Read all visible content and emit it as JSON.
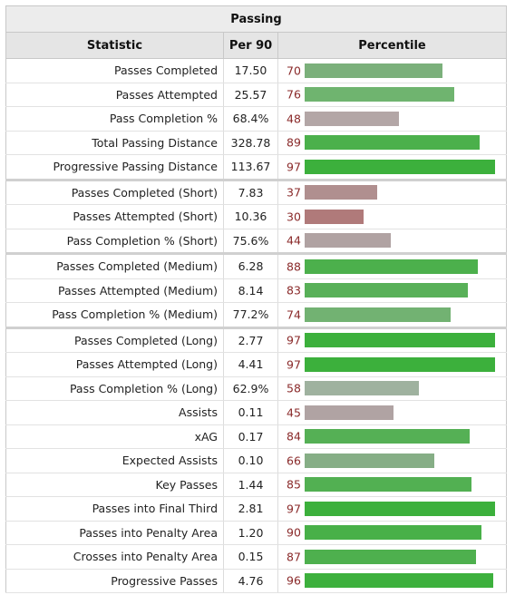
{
  "table": {
    "title": "Passing",
    "headers": {
      "statistic": "Statistic",
      "per90": "Per 90",
      "percentile": "Percentile"
    },
    "rows": [
      {
        "stat": "Passes Completed",
        "per90": "17.50",
        "pct": "70",
        "level": 0.7,
        "color": "#7bb07b",
        "sep": false
      },
      {
        "stat": "Passes Attempted",
        "per90": "25.57",
        "pct": "76",
        "level": 0.76,
        "color": "#6fb46f",
        "sep": false
      },
      {
        "stat": "Pass Completion %",
        "per90": "68.4%",
        "pct": "48",
        "level": 0.48,
        "color": "#b3a6a6",
        "sep": false
      },
      {
        "stat": "Total Passing Distance",
        "per90": "328.78",
        "pct": "89",
        "level": 0.89,
        "color": "#4bb04b",
        "sep": false
      },
      {
        "stat": "Progressive Passing Distance",
        "per90": "113.67",
        "pct": "97",
        "level": 0.97,
        "color": "#3cb03c",
        "sep": false
      },
      {
        "stat": "Passes Completed (Short)",
        "per90": "7.83",
        "pct": "37",
        "level": 0.37,
        "color": "#b08f8f",
        "sep": true
      },
      {
        "stat": "Passes Attempted (Short)",
        "per90": "10.36",
        "pct": "30",
        "level": 0.3,
        "color": "#b07a7a",
        "sep": false
      },
      {
        "stat": "Pass Completion % (Short)",
        "per90": "75.6%",
        "pct": "44",
        "level": 0.44,
        "color": "#b0a2a2",
        "sep": false
      },
      {
        "stat": "Passes Completed (Medium)",
        "per90": "6.28",
        "pct": "88",
        "level": 0.88,
        "color": "#4cb04c",
        "sep": true
      },
      {
        "stat": "Passes Attempted (Medium)",
        "per90": "8.14",
        "pct": "83",
        "level": 0.83,
        "color": "#58b058",
        "sep": false
      },
      {
        "stat": "Pass Completion % (Medium)",
        "per90": "77.2%",
        "pct": "74",
        "level": 0.74,
        "color": "#72b272",
        "sep": false
      },
      {
        "stat": "Passes Completed (Long)",
        "per90": "2.77",
        "pct": "97",
        "level": 0.97,
        "color": "#3cb03c",
        "sep": true
      },
      {
        "stat": "Passes Attempted (Long)",
        "per90": "4.41",
        "pct": "97",
        "level": 0.97,
        "color": "#3cb03c",
        "sep": false
      },
      {
        "stat": "Pass Completion % (Long)",
        "per90": "62.9%",
        "pct": "58",
        "level": 0.58,
        "color": "#9fb29f",
        "sep": false
      },
      {
        "stat": "Assists",
        "per90": "0.11",
        "pct": "45",
        "level": 0.45,
        "color": "#b0a3a3",
        "sep": false
      },
      {
        "stat": "xAG",
        "per90": "0.17",
        "pct": "84",
        "level": 0.84,
        "color": "#55b055",
        "sep": false
      },
      {
        "stat": "Expected Assists",
        "per90": "0.10",
        "pct": "66",
        "level": 0.66,
        "color": "#86ae86",
        "sep": false
      },
      {
        "stat": "Key Passes",
        "per90": "1.44",
        "pct": "85",
        "level": 0.85,
        "color": "#52b052",
        "sep": false
      },
      {
        "stat": "Passes into Final Third",
        "per90": "2.81",
        "pct": "97",
        "level": 0.97,
        "color": "#3cb03c",
        "sep": false
      },
      {
        "stat": "Passes into Penalty Area",
        "per90": "1.20",
        "pct": "90",
        "level": 0.9,
        "color": "#48b048",
        "sep": false
      },
      {
        "stat": "Crosses into Penalty Area",
        "per90": "0.15",
        "pct": "87",
        "level": 0.87,
        "color": "#4eb04e",
        "sep": false
      },
      {
        "stat": "Progressive Passes",
        "per90": "4.76",
        "pct": "96",
        "level": 0.96,
        "color": "#3db03d",
        "sep": false
      }
    ]
  }
}
